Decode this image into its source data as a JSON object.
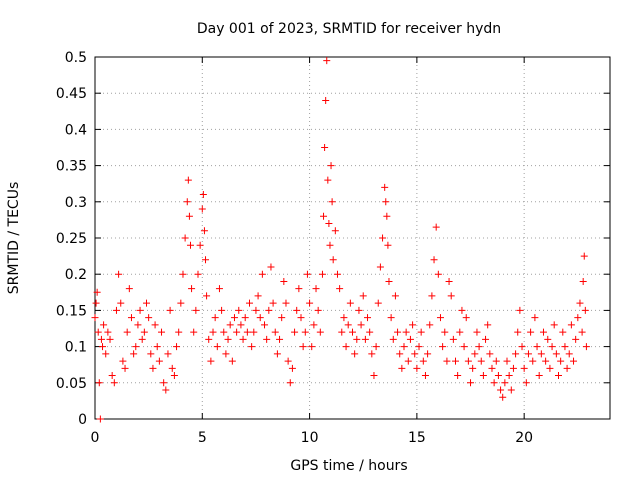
{
  "chart_data": {
    "type": "scatter",
    "title": "Day 001 of 2023, SRMTID for receiver hydn",
    "xlabel": "GPS time / hours",
    "ylabel": "SRMTID / TECUs",
    "xlim": [
      0,
      24
    ],
    "ylim": [
      0,
      0.5
    ],
    "xticks": [
      0,
      5,
      10,
      15,
      20
    ],
    "xtick_labels": [
      "0",
      "5",
      "10",
      "15",
      "20"
    ],
    "yticks": [
      0,
      0.05,
      0.1,
      0.15,
      0.2,
      0.25,
      0.3,
      0.35,
      0.4,
      0.45,
      0.5
    ],
    "ytick_labels": [
      "0",
      "0.05",
      "0.1",
      "0.15",
      "0.2",
      "0.25",
      "0.3",
      "0.35",
      "0.4",
      "0.45",
      "0.5"
    ],
    "grid": true,
    "marker": "plus",
    "marker_color": "#ff0000",
    "series": [
      {
        "name": "SRMTID",
        "points": [
          [
            0.0,
            0.14
          ],
          [
            0.05,
            0.16
          ],
          [
            0.1,
            0.175
          ],
          [
            0.15,
            0.12
          ],
          [
            0.2,
            0.05
          ],
          [
            0.25,
            0.0
          ],
          [
            0.3,
            0.11
          ],
          [
            0.35,
            0.1
          ],
          [
            0.4,
            0.13
          ],
          [
            0.5,
            0.09
          ],
          [
            0.6,
            0.12
          ],
          [
            0.7,
            0.11
          ],
          [
            0.8,
            0.06
          ],
          [
            0.9,
            0.05
          ],
          [
            1.0,
            0.15
          ],
          [
            1.1,
            0.2
          ],
          [
            1.2,
            0.16
          ],
          [
            1.3,
            0.08
          ],
          [
            1.4,
            0.07
          ],
          [
            1.5,
            0.12
          ],
          [
            1.6,
            0.18
          ],
          [
            1.7,
            0.14
          ],
          [
            1.8,
            0.09
          ],
          [
            1.9,
            0.1
          ],
          [
            2.0,
            0.13
          ],
          [
            2.1,
            0.15
          ],
          [
            2.2,
            0.11
          ],
          [
            2.3,
            0.12
          ],
          [
            2.4,
            0.16
          ],
          [
            2.5,
            0.14
          ],
          [
            2.6,
            0.09
          ],
          [
            2.7,
            0.07
          ],
          [
            2.8,
            0.13
          ],
          [
            2.9,
            0.1
          ],
          [
            3.0,
            0.08
          ],
          [
            3.1,
            0.12
          ],
          [
            3.2,
            0.05
          ],
          [
            3.3,
            0.04
          ],
          [
            3.4,
            0.09
          ],
          [
            3.5,
            0.15
          ],
          [
            3.6,
            0.07
          ],
          [
            3.7,
            0.06
          ],
          [
            3.8,
            0.1
          ],
          [
            3.9,
            0.12
          ],
          [
            4.0,
            0.16
          ],
          [
            4.1,
            0.2
          ],
          [
            4.2,
            0.25
          ],
          [
            4.3,
            0.3
          ],
          [
            4.35,
            0.33
          ],
          [
            4.4,
            0.28
          ],
          [
            4.45,
            0.24
          ],
          [
            4.5,
            0.18
          ],
          [
            4.6,
            0.12
          ],
          [
            4.7,
            0.15
          ],
          [
            4.8,
            0.2
          ],
          [
            4.9,
            0.24
          ],
          [
            5.0,
            0.29
          ],
          [
            5.05,
            0.31
          ],
          [
            5.1,
            0.26
          ],
          [
            5.15,
            0.22
          ],
          [
            5.2,
            0.17
          ],
          [
            5.3,
            0.11
          ],
          [
            5.4,
            0.08
          ],
          [
            5.5,
            0.12
          ],
          [
            5.6,
            0.14
          ],
          [
            5.7,
            0.1
          ],
          [
            5.8,
            0.18
          ],
          [
            5.9,
            0.15
          ],
          [
            6.0,
            0.12
          ],
          [
            6.1,
            0.09
          ],
          [
            6.2,
            0.11
          ],
          [
            6.3,
            0.13
          ],
          [
            6.4,
            0.08
          ],
          [
            6.5,
            0.14
          ],
          [
            6.6,
            0.12
          ],
          [
            6.7,
            0.15
          ],
          [
            6.8,
            0.13
          ],
          [
            6.9,
            0.11
          ],
          [
            7.0,
            0.14
          ],
          [
            7.1,
            0.12
          ],
          [
            7.2,
            0.16
          ],
          [
            7.3,
            0.1
          ],
          [
            7.4,
            0.12
          ],
          [
            7.5,
            0.15
          ],
          [
            7.6,
            0.17
          ],
          [
            7.7,
            0.14
          ],
          [
            7.8,
            0.2
          ],
          [
            7.9,
            0.13
          ],
          [
            8.0,
            0.11
          ],
          [
            8.1,
            0.15
          ],
          [
            8.2,
            0.21
          ],
          [
            8.3,
            0.16
          ],
          [
            8.4,
            0.12
          ],
          [
            8.5,
            0.09
          ],
          [
            8.6,
            0.11
          ],
          [
            8.7,
            0.14
          ],
          [
            8.8,
            0.19
          ],
          [
            8.9,
            0.16
          ],
          [
            9.0,
            0.08
          ],
          [
            9.1,
            0.05
          ],
          [
            9.2,
            0.07
          ],
          [
            9.3,
            0.12
          ],
          [
            9.4,
            0.15
          ],
          [
            9.5,
            0.18
          ],
          [
            9.6,
            0.14
          ],
          [
            9.7,
            0.1
          ],
          [
            9.8,
            0.12
          ],
          [
            9.9,
            0.2
          ],
          [
            10.0,
            0.16
          ],
          [
            10.1,
            0.1
          ],
          [
            10.2,
            0.13
          ],
          [
            10.3,
            0.18
          ],
          [
            10.4,
            0.15
          ],
          [
            10.5,
            0.12
          ],
          [
            10.6,
            0.2
          ],
          [
            10.65,
            0.28
          ],
          [
            10.7,
            0.375
          ],
          [
            10.75,
            0.44
          ],
          [
            10.8,
            0.495
          ],
          [
            10.85,
            0.33
          ],
          [
            10.9,
            0.27
          ],
          [
            10.95,
            0.24
          ],
          [
            11.0,
            0.35
          ],
          [
            11.05,
            0.3
          ],
          [
            11.1,
            0.22
          ],
          [
            11.2,
            0.26
          ],
          [
            11.3,
            0.2
          ],
          [
            11.4,
            0.18
          ],
          [
            11.5,
            0.12
          ],
          [
            11.6,
            0.14
          ],
          [
            11.7,
            0.1
          ],
          [
            11.8,
            0.13
          ],
          [
            11.9,
            0.16
          ],
          [
            12.0,
            0.12
          ],
          [
            12.1,
            0.09
          ],
          [
            12.2,
            0.11
          ],
          [
            12.3,
            0.15
          ],
          [
            12.4,
            0.13
          ],
          [
            12.5,
            0.17
          ],
          [
            12.6,
            0.11
          ],
          [
            12.7,
            0.14
          ],
          [
            12.8,
            0.12
          ],
          [
            12.9,
            0.09
          ],
          [
            13.0,
            0.06
          ],
          [
            13.1,
            0.1
          ],
          [
            13.2,
            0.16
          ],
          [
            13.3,
            0.21
          ],
          [
            13.4,
            0.25
          ],
          [
            13.5,
            0.32
          ],
          [
            13.55,
            0.3
          ],
          [
            13.6,
            0.28
          ],
          [
            13.65,
            0.24
          ],
          [
            13.7,
            0.19
          ],
          [
            13.8,
            0.14
          ],
          [
            13.9,
            0.11
          ],
          [
            14.0,
            0.17
          ],
          [
            14.1,
            0.12
          ],
          [
            14.2,
            0.09
          ],
          [
            14.3,
            0.07
          ],
          [
            14.4,
            0.1
          ],
          [
            14.5,
            0.12
          ],
          [
            14.6,
            0.08
          ],
          [
            14.7,
            0.11
          ],
          [
            14.8,
            0.13
          ],
          [
            14.9,
            0.09
          ],
          [
            15.0,
            0.07
          ],
          [
            15.1,
            0.1
          ],
          [
            15.2,
            0.12
          ],
          [
            15.3,
            0.08
          ],
          [
            15.4,
            0.06
          ],
          [
            15.5,
            0.09
          ],
          [
            15.6,
            0.13
          ],
          [
            15.7,
            0.17
          ],
          [
            15.8,
            0.22
          ],
          [
            15.9,
            0.265
          ],
          [
            16.0,
            0.2
          ],
          [
            16.1,
            0.14
          ],
          [
            16.2,
            0.1
          ],
          [
            16.3,
            0.12
          ],
          [
            16.4,
            0.08
          ],
          [
            16.5,
            0.19
          ],
          [
            16.6,
            0.17
          ],
          [
            16.7,
            0.11
          ],
          [
            16.8,
            0.08
          ],
          [
            16.9,
            0.06
          ],
          [
            17.0,
            0.12
          ],
          [
            17.1,
            0.15
          ],
          [
            17.2,
            0.1
          ],
          [
            17.3,
            0.14
          ],
          [
            17.4,
            0.08
          ],
          [
            17.5,
            0.05
          ],
          [
            17.6,
            0.07
          ],
          [
            17.7,
            0.09
          ],
          [
            17.8,
            0.12
          ],
          [
            17.9,
            0.1
          ],
          [
            18.0,
            0.08
          ],
          [
            18.1,
            0.06
          ],
          [
            18.2,
            0.11
          ],
          [
            18.3,
            0.13
          ],
          [
            18.4,
            0.09
          ],
          [
            18.5,
            0.07
          ],
          [
            18.6,
            0.05
          ],
          [
            18.7,
            0.08
          ],
          [
            18.8,
            0.06
          ],
          [
            18.9,
            0.04
          ],
          [
            19.0,
            0.03
          ],
          [
            19.1,
            0.05
          ],
          [
            19.2,
            0.08
          ],
          [
            19.3,
            0.06
          ],
          [
            19.4,
            0.04
          ],
          [
            19.5,
            0.07
          ],
          [
            19.6,
            0.09
          ],
          [
            19.7,
            0.12
          ],
          [
            19.8,
            0.15
          ],
          [
            19.9,
            0.1
          ],
          [
            20.0,
            0.07
          ],
          [
            20.1,
            0.05
          ],
          [
            20.2,
            0.09
          ],
          [
            20.3,
            0.12
          ],
          [
            20.4,
            0.08
          ],
          [
            20.5,
            0.14
          ],
          [
            20.6,
            0.1
          ],
          [
            20.7,
            0.06
          ],
          [
            20.8,
            0.09
          ],
          [
            20.9,
            0.12
          ],
          [
            21.0,
            0.08
          ],
          [
            21.1,
            0.11
          ],
          [
            21.2,
            0.07
          ],
          [
            21.3,
            0.1
          ],
          [
            21.4,
            0.13
          ],
          [
            21.5,
            0.09
          ],
          [
            21.6,
            0.06
          ],
          [
            21.7,
            0.08
          ],
          [
            21.8,
            0.12
          ],
          [
            21.9,
            0.1
          ],
          [
            22.0,
            0.07
          ],
          [
            22.1,
            0.09
          ],
          [
            22.2,
            0.13
          ],
          [
            22.3,
            0.08
          ],
          [
            22.4,
            0.11
          ],
          [
            22.5,
            0.14
          ],
          [
            22.6,
            0.16
          ],
          [
            22.7,
            0.12
          ],
          [
            22.75,
            0.19
          ],
          [
            22.8,
            0.225
          ],
          [
            22.85,
            0.15
          ],
          [
            22.9,
            0.1
          ]
        ]
      }
    ]
  }
}
